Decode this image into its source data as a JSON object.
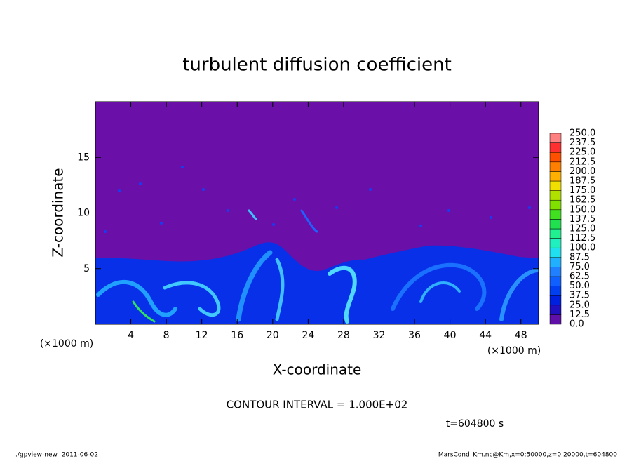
{
  "chart_data": {
    "type": "contour",
    "title": "turbulent diffusion coefficient",
    "xlabel": "X-coordinate",
    "ylabel": "Z-coordinate",
    "x_unit_label": "(×1000 m)",
    "y_unit_label": "(×1000 m)",
    "xlim": [
      0,
      50
    ],
    "xticks": [
      4,
      8,
      12,
      16,
      20,
      24,
      28,
      32,
      36,
      40,
      44,
      48
    ],
    "ylim": [
      0,
      20
    ],
    "yticks": [
      5,
      10,
      15
    ],
    "colorbar": {
      "levels": [
        {
          "value": 0,
          "label": "0.0"
        },
        {
          "value": 12.5,
          "label": "12.5"
        },
        {
          "value": 25,
          "label": "25.0"
        },
        {
          "value": 37.5,
          "label": "37.5"
        },
        {
          "value": 50,
          "label": "50.0"
        },
        {
          "value": 62.5,
          "label": "62.5"
        },
        {
          "value": 75,
          "label": "75.0"
        },
        {
          "value": 87.5,
          "label": "87.5"
        },
        {
          "value": 100,
          "label": "100.0"
        },
        {
          "value": 112.5,
          "label": "112.5"
        },
        {
          "value": 125,
          "label": "125.0"
        },
        {
          "value": 137.5,
          "label": "137.5"
        },
        {
          "value": 150,
          "label": "150.0"
        },
        {
          "value": 162.5,
          "label": "162.5"
        },
        {
          "value": 175,
          "label": "175.0"
        },
        {
          "value": 187.5,
          "label": "187.5"
        },
        {
          "value": 200,
          "label": "200.0"
        },
        {
          "value": 212.5,
          "label": "212.5"
        },
        {
          "value": 225,
          "label": "225.0"
        },
        {
          "value": 237.5,
          "label": "237.5"
        },
        {
          "value": 250,
          "label": "250.0"
        }
      ],
      "colors": [
        "#6010a8",
        "#2010c0",
        "#0020e0",
        "#0040f0",
        "#1060ff",
        "#2080ff",
        "#20b0ff",
        "#20e0f0",
        "#20f0c0",
        "#20f090",
        "#20e050",
        "#40e020",
        "#80e000",
        "#b0e000",
        "#f0e000",
        "#ffb000",
        "#ff8000",
        "#ff5000",
        "#ff3030",
        "#ff8080"
      ]
    },
    "contour_interval": "CONTOUR INTERVAL = 1.000E+02",
    "time_label": "t=604800 s",
    "footer_left": "./gpview-new  2011-06-02",
    "footer_right": "MarsCond_Km.nc@Km,x=0:50000,z=0:20000,t=604800"
  }
}
